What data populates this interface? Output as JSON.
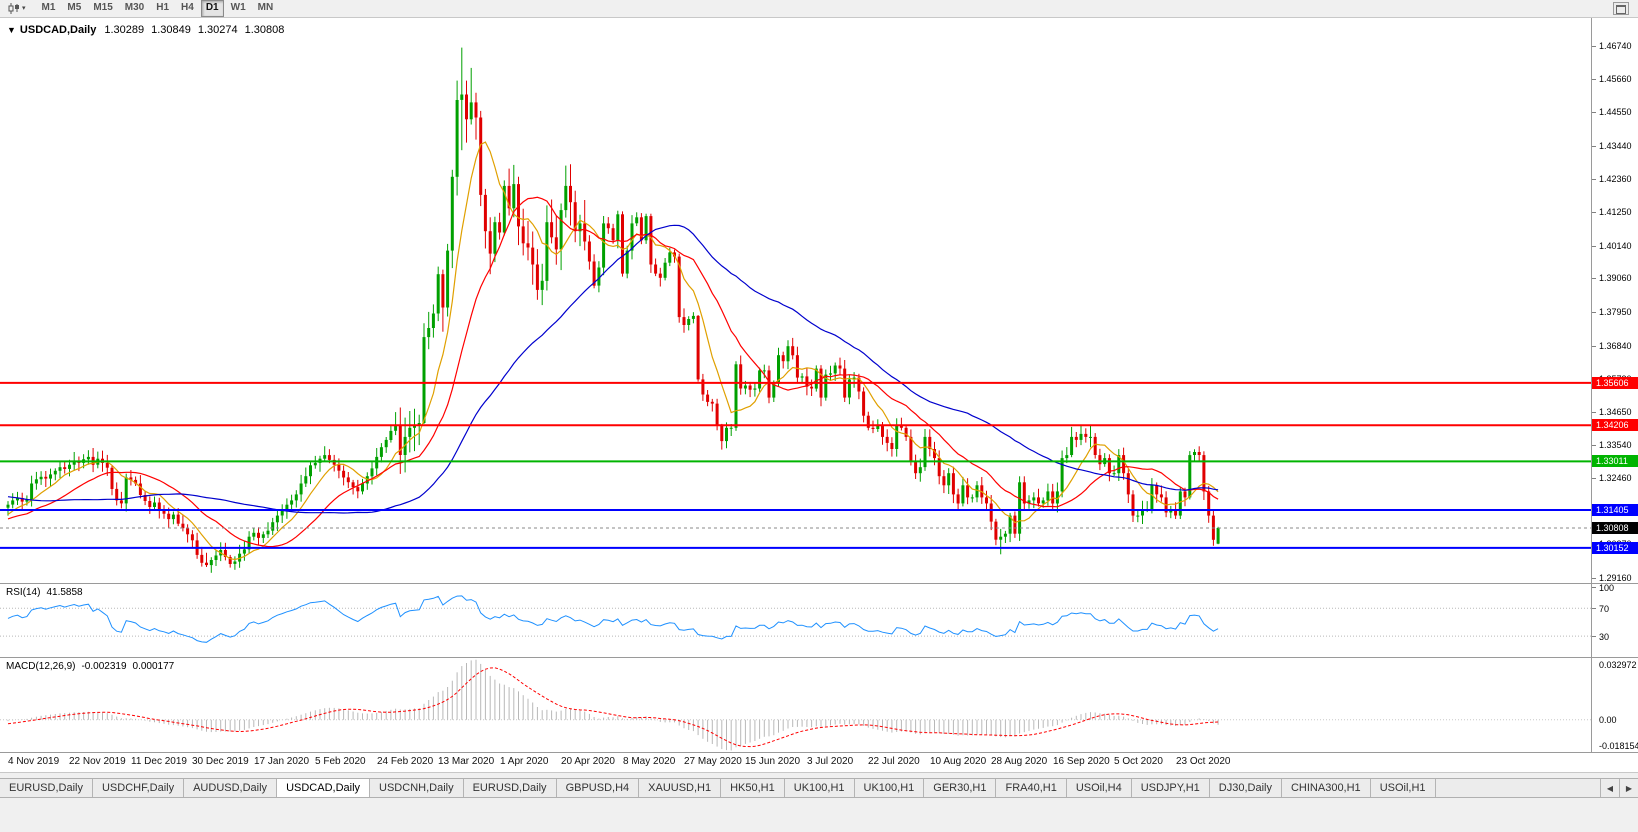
{
  "toolbar": {
    "periods": [
      "M1",
      "M5",
      "M15",
      "M30",
      "H1",
      "H4",
      "D1",
      "W1",
      "MN"
    ],
    "active_period": "D1",
    "caret_icon": "▾"
  },
  "chart_header": {
    "caret": "▼",
    "symbol": "USDCAD,Daily",
    "open": "1.30289",
    "high": "1.30849",
    "low": "1.30274",
    "close": "1.30808"
  },
  "tab_bar": {
    "tabs": [
      {
        "label": "EURUSD,Daily",
        "active": false
      },
      {
        "label": "USDCHF,Daily",
        "active": false
      },
      {
        "label": "AUDUSD,Daily",
        "active": false
      },
      {
        "label": "USDCAD,Daily",
        "active": true
      },
      {
        "label": "USDCNH,Daily",
        "active": false
      },
      {
        "label": "EURUSD,Daily",
        "active": false
      },
      {
        "label": "GBPUSD,H4",
        "active": false
      },
      {
        "label": "XAUUSD,H1",
        "active": false
      },
      {
        "label": "HK50,H1",
        "active": false
      },
      {
        "label": "UK100,H1",
        "active": false
      },
      {
        "label": "UK100,H1",
        "active": false
      },
      {
        "label": "GER30,H1",
        "active": false
      },
      {
        "label": "FRA40,H1",
        "active": false
      },
      {
        "label": "USOil,H4",
        "active": false
      },
      {
        "label": "USDJPY,H1",
        "active": false
      },
      {
        "label": "DJ30,Daily",
        "active": false
      },
      {
        "label": "CHINA300,H1",
        "active": false
      },
      {
        "label": "USOil,H1",
        "active": false
      }
    ],
    "scroll_left": "◀",
    "scroll_right": "▶"
  },
  "chart_data": {
    "type": "candlestick",
    "symbol": "USDCAD",
    "timeframe": "Daily",
    "up_color": "#00a000",
    "down_color": "#e00000",
    "value_range": [
      1.2899,
      1.4767
    ],
    "wick_base": 0.0022,
    "volatile_range": [
      83,
      122
    ],
    "first_open": 1.3148,
    "y_ticks": [
      "1.46740",
      "1.45660",
      "1.44550",
      "1.43440",
      "1.42360",
      "1.41250",
      "1.40140",
      "1.39060",
      "1.37950",
      "1.36840",
      "1.35730",
      "1.34650",
      "1.33540",
      "1.32460",
      "1.31350",
      "1.30270",
      "1.29160"
    ],
    "level_labels": [
      {
        "text": "1.35606",
        "value": 1.35606,
        "bg": "#ff0000",
        "style": "solid"
      },
      {
        "text": "1.34206",
        "value": 1.34206,
        "bg": "#ff0000",
        "style": "solid"
      },
      {
        "text": "1.33011",
        "value": 1.33011,
        "bg": "#00b400",
        "style": "solid"
      },
      {
        "text": "1.31405",
        "value": 1.31405,
        "bg": "#0000ff",
        "style": "solid"
      },
      {
        "text": "1.30808",
        "value": 1.30808,
        "bg": "#000000",
        "style": "current"
      },
      {
        "text": "1.30152",
        "value": 1.30152,
        "bg": "#0000ff",
        "style": "solid"
      }
    ],
    "x_labels": [
      "4 Nov 2019",
      "22 Nov 2019",
      "11 Dec 2019",
      "30 Dec 2019",
      "17 Jan 2020",
      "5 Feb 2020",
      "24 Feb 2020",
      "13 Mar 2020",
      "1 Apr 2020",
      "20 Apr 2020",
      "8 May 2020",
      "27 May 2020",
      "15 Jun 2020",
      "3 Jul 2020",
      "22 Jul 2020",
      "10 Aug 2020",
      "28 Aug 2020",
      "16 Sep 2020",
      "5 Oct 2020",
      "23 Oct 2020"
    ],
    "x_label_step": 13,
    "pre_closes": [
      1.3262,
      1.3248,
      1.3232,
      1.322,
      1.3236,
      1.3252,
      1.3266,
      1.3282,
      1.3296,
      1.331,
      1.3322,
      1.3306,
      1.329,
      1.3272,
      1.3254,
      1.3242,
      1.323,
      1.3244,
      1.3258,
      1.327,
      1.3284,
      1.3296,
      1.3308,
      1.3322,
      1.3296,
      1.327,
      1.3244,
      1.3216,
      1.319,
      1.3164,
      1.314,
      1.3118,
      1.3098,
      1.3082,
      1.307,
      1.3058,
      1.307,
      1.3084,
      1.3096,
      1.3108,
      1.3084,
      1.3062,
      1.312,
      1.3142,
      1.313,
      1.3118,
      1.3106,
      1.3094,
      1.3082,
      1.3096,
      1.311,
      1.3124,
      1.3138,
      1.315,
      1.3148
    ],
    "closes": [
      1.3158,
      1.3172,
      1.318,
      1.3168,
      1.3175,
      1.3228,
      1.3242,
      1.325,
      1.3244,
      1.3258,
      1.327,
      1.3282,
      1.3276,
      1.329,
      1.3302,
      1.3296,
      1.3308,
      1.3316,
      1.329,
      1.331,
      1.3296,
      1.328,
      1.321,
      1.3172,
      1.3162,
      1.3248,
      1.324,
      1.3228,
      1.319,
      1.317,
      1.315,
      1.3165,
      1.314,
      1.3128,
      1.311,
      1.3125,
      1.3095,
      1.308,
      1.306,
      1.304,
      1.2992,
      1.2966,
      1.2958,
      1.2975,
      1.299,
      1.3008,
      1.2985,
      1.2962,
      1.297,
      1.2996,
      1.301,
      1.3052,
      1.3065,
      1.3048,
      1.306,
      1.3072,
      1.31,
      1.3122,
      1.3138,
      1.3158,
      1.3172,
      1.3192,
      1.3228,
      1.3252,
      1.3288,
      1.3296,
      1.331,
      1.3322,
      1.3306,
      1.329,
      1.327,
      1.3248,
      1.3232,
      1.3216,
      1.3202,
      1.3228,
      1.3252,
      1.3278,
      1.3316,
      1.3348,
      1.3372,
      1.3402,
      1.342,
      1.3322,
      1.3382,
      1.3412,
      1.342,
      1.3428,
      1.3712,
      1.3742,
      1.379,
      1.392,
      1.381,
      1.3998,
      1.4242,
      1.4496,
      1.4514,
      1.4432,
      1.4488,
      1.4438,
      1.4182,
      1.4062,
      1.3988,
      1.4092,
      1.4058,
      1.4212,
      1.4138,
      1.4218,
      1.4078,
      1.4022,
      1.4008,
      1.3952,
      1.3868,
      1.3898,
      1.4092,
      1.4042,
      1.4002,
      1.4132,
      1.4212,
      1.4158,
      1.4062,
      1.4088,
      1.4028,
      1.3962,
      1.3882,
      1.3942,
      1.4088,
      1.4072,
      1.4032,
      1.4118,
      1.3922,
      1.3998,
      1.4088,
      1.4108,
      1.4032,
      1.4112,
      1.3952,
      1.3922,
      1.3908,
      1.3958,
      1.3992,
      1.3978,
      1.3778,
      1.3752,
      1.3772,
      1.3782,
      1.3572,
      1.3522,
      1.3498,
      1.3492,
      1.3422,
      1.3368,
      1.3412,
      1.3412,
      1.3622,
      1.3542,
      1.3552,
      1.3538,
      1.3542,
      1.3602,
      1.3602,
      1.3512,
      1.3558,
      1.3652,
      1.3632,
      1.3682,
      1.3652,
      1.3578,
      1.3582,
      1.3548,
      1.3542,
      1.3608,
      1.3512,
      1.3588,
      1.3592,
      1.3618,
      1.3608,
      1.3512,
      1.3572,
      1.3578,
      1.3532,
      1.3452,
      1.3412,
      1.3408,
      1.3418,
      1.3382,
      1.3362,
      1.3342,
      1.3422,
      1.3412,
      1.3382,
      1.3302,
      1.3262,
      1.3282,
      1.3382,
      1.3342,
      1.3312,
      1.3252,
      1.3222,
      1.3262,
      1.3192,
      1.3162,
      1.3222,
      1.3182,
      1.3182,
      1.3222,
      1.3182,
      1.3162,
      1.3102,
      1.3042,
      1.3052,
      1.3062,
      1.3122,
      1.3062,
      1.3232,
      1.3162,
      1.3172,
      1.3182,
      1.3162,
      1.3172,
      1.3202,
      1.3162,
      1.3202,
      1.3312,
      1.3322,
      1.3382,
      1.3372,
      1.3392,
      1.3382,
      1.3382,
      1.3322,
      1.3292,
      1.3312,
      1.3262,
      1.3262,
      1.3322,
      1.3262,
      1.3192,
      1.3122,
      1.3122,
      1.3142,
      1.3142,
      1.3222,
      1.3192,
      1.3182,
      1.3132,
      1.3142,
      1.3122,
      1.3202,
      1.3182,
      1.3322,
      1.3332,
      1.3322,
      1.3202,
      1.3122,
      1.3042,
      1.30808
    ],
    "last_candle": [
      1.30289,
      1.30849,
      1.30274,
      1.30808
    ],
    "wick_overrides": {
      "14": [
        1.3332,
        1.327
      ],
      "17": [
        1.3338,
        1.329
      ],
      "42": [
        1.2999,
        1.2952
      ],
      "47": [
        1.2992,
        1.295
      ],
      "82": [
        1.3464,
        1.3388
      ],
      "88": [
        1.3758,
        1.3425
      ],
      "91": [
        1.3945,
        1.3765
      ],
      "92": [
        1.3935,
        1.373
      ],
      "93": [
        1.402,
        1.378
      ],
      "94": [
        1.4265,
        1.394
      ],
      "95": [
        1.456,
        1.418
      ],
      "96": [
        1.4669,
        1.433
      ],
      "97": [
        1.456,
        1.4355
      ],
      "98": [
        1.4602,
        1.4415
      ],
      "99": [
        1.452,
        1.4365
      ],
      "100": [
        1.446,
        1.4145
      ],
      "101": [
        1.4202,
        1.4005
      ],
      "102": [
        1.4108,
        1.392
      ],
      "103": [
        1.411,
        1.396
      ],
      "105": [
        1.423,
        1.4048
      ],
      "146": [
        1.3785,
        1.3565
      ],
      "151": [
        1.3425,
        1.334
      ],
      "154": [
        1.3632,
        1.3402
      ],
      "210": [
        1.3078,
        1.2994
      ],
      "225": [
        1.3415,
        1.3315
      ],
      "227": [
        1.3418,
        1.3355
      ],
      "229": [
        1.3421,
        1.3348
      ],
      "250": [
        1.3335,
        1.3175
      ],
      "255": [
        1.314,
        1.3022
      ]
    },
    "moving_averages": [
      {
        "period": 8,
        "color": "#e0a000"
      },
      {
        "period": 20,
        "color": "#ff0000"
      },
      {
        "period": 50,
        "color": "#0000cd"
      }
    ],
    "rsi": {
      "label": "RSI(14)",
      "value": "41.5858",
      "period": 14,
      "line_color": "#1e90ff",
      "levels": [
        70,
        30
      ],
      "ticks": [
        "100",
        "70",
        "30"
      ],
      "scale_max": 105
    },
    "macd": {
      "label": "MACD(12,26,9)",
      "value_main": "-0.002319",
      "value_signal": "0.000177",
      "fast": 12,
      "slow": 26,
      "signal": 9,
      "hist_color": "#b8b8b8",
      "signal_color": "#ff0000",
      "ticks": {
        "top": "0.032972",
        "zero": "0.00",
        "bottom": "-0.018154"
      }
    }
  }
}
